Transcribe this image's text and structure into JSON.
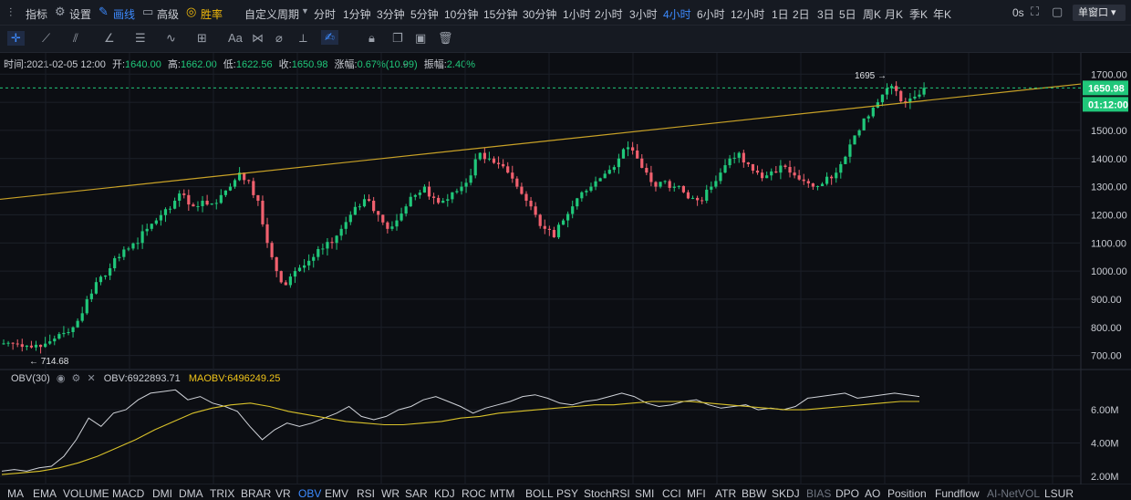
{
  "toolbar": {
    "indicators_label": "指标",
    "settings_label": "设置",
    "draw_label": "画线",
    "advanced_label": "高级",
    "winrate_label": "胜率",
    "custom_period_label": "自定义周期",
    "periods": [
      "分时",
      "1分钟",
      "3分钟",
      "5分钟",
      "10分钟",
      "15分钟",
      "30分钟",
      "1小时",
      "2小时",
      "3小时",
      "4小时",
      "6小时",
      "12小时",
      "1日",
      "2日",
      "3日",
      "5日",
      "周K",
      "月K",
      "季K",
      "年K"
    ],
    "active_period": "4小时",
    "countdown_label": "0s",
    "window_select": "单窗口"
  },
  "draw_tools": {
    "font_label": "Aa"
  },
  "info_bar": {
    "time_label": "时间:",
    "time_value": "2021-02-05 12:00",
    "open_label": "开:",
    "open_value": "1640.00",
    "high_label": "高:",
    "high_value": "1662.00",
    "low_label": "低:",
    "low_value": "1622.56",
    "close_label": "收:",
    "close_value": "1650.98",
    "change_label": "涨幅:",
    "change_value": "0.67%(10.99)",
    "amplitude_label": "振幅:",
    "amplitude_value": "2.40%"
  },
  "price_tags": {
    "last_price": "1650.98",
    "countdown": "01:12:00",
    "high_marker": "1695",
    "low_marker": "714.68"
  },
  "obv_header": {
    "name": "OBV(30)",
    "obv_label": "OBV:",
    "obv_value": "6922893.71",
    "maobv_label": "MAOBV:",
    "maobv_value": "6496249.25"
  },
  "indicator_tabs": [
    "MA",
    "EMA",
    "VOLUME",
    "MACD",
    "DMI",
    "DMA",
    "TRIX",
    "BRAR",
    "VR",
    "OBV",
    "EMV",
    "RSI",
    "WR",
    "SAR",
    "KDJ",
    "ROC",
    "MTM",
    "BOLL",
    "PSY",
    "StochRSI",
    "SMI",
    "CCI",
    "MFI",
    "ATR",
    "BBW",
    "SKDJ",
    "BIAS",
    "DPO",
    "AO",
    "Position",
    "Fundflow",
    "AI-NetVOL",
    "LSUR"
  ],
  "active_indicator": "OBV",
  "colors": {
    "up": "#20c77a",
    "down": "#f0606e",
    "accent": "#3d8bff",
    "trendline": "#c9a227",
    "maobv": "#d9c22a",
    "obv": "#d0d3d9"
  },
  "chart_data": [
    {
      "type": "candlestick",
      "ylim": [
        650,
        1730
      ],
      "y_ticks": [
        "1700.00",
        "1600.00",
        "1500.00",
        "1400.00",
        "1300.00",
        "1200.00",
        "1100.00",
        "1000.00",
        "900.00",
        "800.00",
        "700.00"
      ],
      "y_tick_values": [
        1700,
        1600,
        1500,
        1400,
        1300,
        1200,
        1100,
        1000,
        900,
        800,
        700
      ],
      "max_marker": 1695,
      "min_marker": 714.68,
      "last_price": 1650.98,
      "key_closes": [
        745,
        740,
        735,
        738,
        742,
        760,
        780,
        800,
        850,
        920,
        980,
        1010,
        1050,
        1080,
        1100,
        1150,
        1180,
        1220,
        1250,
        1270,
        1230,
        1250,
        1240,
        1270,
        1300,
        1350,
        1320,
        1250,
        1100,
        1000,
        950,
        1000,
        1020,
        1050,
        1080,
        1100,
        1150,
        1200,
        1230,
        1250,
        1200,
        1150,
        1180,
        1230,
        1270,
        1300,
        1260,
        1250,
        1280,
        1300,
        1340,
        1420,
        1400,
        1380,
        1350,
        1300,
        1250,
        1200,
        1150,
        1120,
        1180,
        1230,
        1280,
        1300,
        1330,
        1360,
        1400,
        1440,
        1400,
        1350,
        1300,
        1320,
        1300,
        1280,
        1260,
        1250,
        1300,
        1350,
        1400,
        1420,
        1380,
        1350,
        1340,
        1350,
        1370,
        1340,
        1320,
        1300,
        1310,
        1330,
        1380,
        1450,
        1500,
        1550,
        1600,
        1650,
        1640,
        1600,
        1620,
        1650.98
      ],
      "trendline": [
        {
          "t": 0,
          "price": 1255
        },
        {
          "t": 1,
          "price": 1665
        }
      ]
    },
    {
      "type": "line",
      "name": "OBV(30)",
      "ylim": [
        1500000,
        7600000
      ],
      "y_ticks": [
        "6.00M",
        "4.00M",
        "2.00M"
      ],
      "y_tick_values": [
        6000000,
        4000000,
        2000000
      ],
      "series": [
        {
          "name": "OBV",
          "values": [
            2.3,
            2.4,
            2.3,
            2.5,
            2.6,
            3.2,
            4.2,
            5.5,
            5.0,
            5.8,
            6.0,
            6.6,
            7.0,
            7.1,
            7.2,
            6.6,
            6.8,
            6.4,
            6.2,
            5.9,
            5.0,
            4.2,
            4.8,
            5.2,
            5.0,
            5.2,
            5.5,
            5.8,
            6.2,
            5.6,
            5.4,
            5.6,
            6.0,
            6.2,
            6.6,
            6.8,
            6.5,
            6.2,
            5.8,
            6.1,
            6.3,
            6.5,
            6.8,
            6.9,
            6.7,
            6.4,
            6.3,
            6.5,
            6.6,
            6.8,
            7.0,
            6.8,
            6.4,
            6.2,
            6.3,
            6.5,
            6.6,
            6.3,
            6.1,
            6.2,
            6.3,
            6.0,
            6.1,
            6.0,
            6.2,
            6.7,
            6.8,
            6.9,
            7.0,
            6.7,
            6.8,
            6.9,
            7.0,
            6.9,
            6.8
          ]
        },
        {
          "name": "MAOBV",
          "values": [
            2.1,
            2.2,
            2.3,
            2.5,
            2.8,
            3.2,
            3.7,
            4.2,
            4.8,
            5.3,
            5.8,
            6.1,
            6.3,
            6.4,
            6.2,
            5.9,
            5.7,
            5.5,
            5.3,
            5.2,
            5.1,
            5.1,
            5.2,
            5.3,
            5.5,
            5.6,
            5.8,
            5.9,
            6.0,
            6.1,
            6.2,
            6.3,
            6.3,
            6.4,
            6.5,
            6.5,
            6.5,
            6.4,
            6.3,
            6.2,
            6.1,
            6.0,
            6.0,
            6.1,
            6.2,
            6.3,
            6.4,
            6.5,
            6.5
          ]
        }
      ],
      "last_obv": 6922893.71,
      "last_maobv": 6496249.25
    }
  ]
}
